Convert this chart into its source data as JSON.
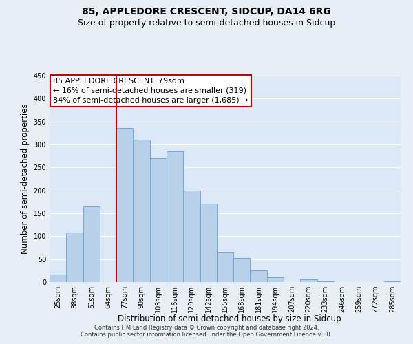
{
  "title": "85, APPLEDORE CRESCENT, SIDCUP, DA14 6RG",
  "subtitle": "Size of property relative to semi-detached houses in Sidcup",
  "xlabel": "Distribution of semi-detached houses by size in Sidcup",
  "ylabel": "Number of semi-detached properties",
  "categories": [
    "25sqm",
    "38sqm",
    "51sqm",
    "64sqm",
    "77sqm",
    "90sqm",
    "103sqm",
    "116sqm",
    "129sqm",
    "142sqm",
    "155sqm",
    "168sqm",
    "181sqm",
    "194sqm",
    "207sqm",
    "220sqm",
    "233sqm",
    "246sqm",
    "259sqm",
    "272sqm",
    "285sqm"
  ],
  "values": [
    17,
    108,
    165,
    0,
    336,
    310,
    270,
    285,
    200,
    171,
    65,
    53,
    25,
    10,
    0,
    6,
    2,
    0,
    0,
    0,
    2
  ],
  "bar_color": "#b8d0e8",
  "bar_edge_color": "#6aaad4",
  "marker_index": 4,
  "vline_color": "#cc0000",
  "annotation_box_edge_color": "#cc0000",
  "annotation_title": "85 APPLEDORE CRESCENT: 79sqm",
  "annotation_line1": "← 16% of semi-detached houses are smaller (319)",
  "annotation_line2": "84% of semi-detached houses are larger (1,685) →",
  "ylim": [
    0,
    450
  ],
  "yticks": [
    0,
    50,
    100,
    150,
    200,
    250,
    300,
    350,
    400,
    450
  ],
  "footer1": "Contains HM Land Registry data © Crown copyright and database right 2024.",
  "footer2": "Contains public sector information licensed under the Open Government Licence v3.0.",
  "bg_color": "#e8eef5",
  "plot_bg_color": "#dce8f5",
  "grid_color": "#ffffff",
  "title_fontsize": 10,
  "subtitle_fontsize": 9,
  "axis_label_fontsize": 8.5,
  "tick_fontsize": 7,
  "annotation_fontsize": 8,
  "footer_fontsize": 6
}
